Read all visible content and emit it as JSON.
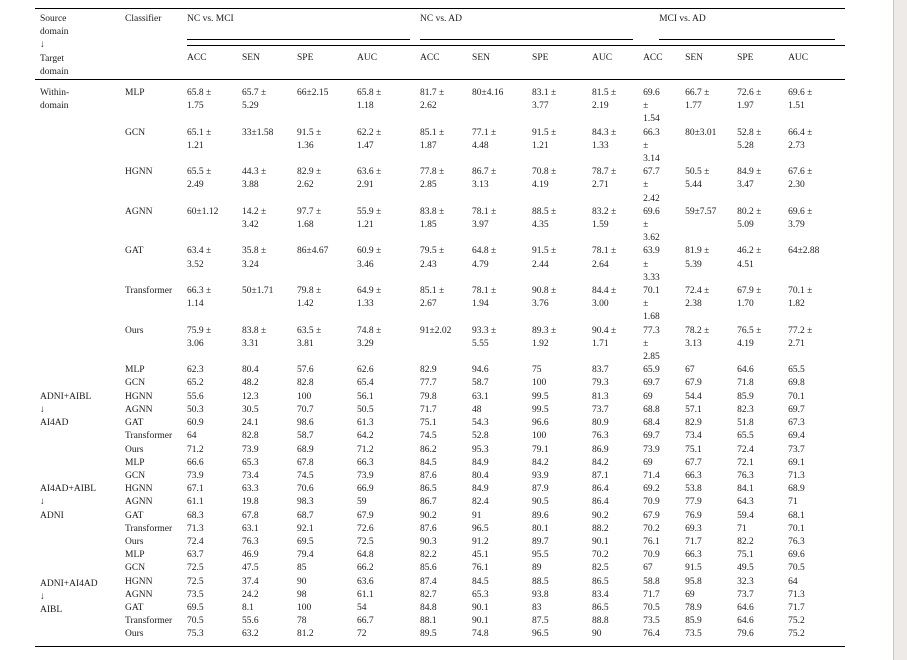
{
  "page": {
    "edge_band_color": "#edeae7"
  },
  "table": {
    "header": {
      "source_label": "Source\ndomain\n↓\nTarget\ndomain",
      "classifier_label": "Classifier",
      "groups": [
        {
          "label": "NC vs. MCI"
        },
        {
          "label": "NC vs. AD"
        },
        {
          "label": "MCI vs. AD"
        }
      ],
      "metrics": [
        "ACC",
        "SEN",
        "SPE",
        "AUC"
      ]
    },
    "blocks": [
      {
        "source": "Within-\ndomain",
        "rows": [
          {
            "classifier": "MLP",
            "values": [
              "65.8 ± 1.75",
              "65.7 ± 5.29",
              "66±2.15",
              "65.8 ± 1.18",
              "81.7 ± 2.62",
              "80±4.16",
              "83.1 ± 3.77",
              "81.5 ± 2.19",
              "69.6 ± 1.54",
              "66.7 ± 1.77",
              "72.6 ± 1.97",
              "69.6 ± 1.51"
            ]
          },
          {
            "classifier": "GCN",
            "values": [
              "65.1 ± 1.21",
              "33±1.58",
              "91.5 ± 1.36",
              "62.2 ± 1.47",
              "85.1 ± 1.87",
              "77.1 ± 4.48",
              "91.5 ± 1.21",
              "84.3 ± 1.33",
              "66.3 ± 3.14",
              "80±3.01",
              "52.8 ± 5.28",
              "66.4 ± 2.73"
            ]
          },
          {
            "classifier": "HGNN",
            "values": [
              "65.5 ± 2.49",
              "44.3 ± 3.88",
              "82.9 ± 2.62",
              "63.6 ± 2.91",
              "77.8 ± 2.85",
              "86.7 ± 3.13",
              "70.8 ± 4.19",
              "78.7 ± 2.71",
              "67.7 ± 2.42",
              "50.5 ± 5.44",
              "84.9 ± 3.47",
              "67.6 ± 2.30"
            ]
          },
          {
            "classifier": "AGNN",
            "values": [
              "60±1.12",
              "14.2 ± 3.42",
              "97.7 ± 1.68",
              "55.9 ± 1.21",
              "83.8 ± 1.85",
              "78.1 ± 3.97",
              "88.5 ± 4.35",
              "83.2 ± 1.59",
              "69.6 ± 3.62",
              "59±7.57",
              "80.2 ± 5.09",
              "69.6 ± 3.79"
            ]
          },
          {
            "classifier": "GAT",
            "values": [
              "63.4 ± 3.52",
              "35.8 ± 3.24",
              "86±4.67",
              "60.9 ± 3.46",
              "79.5 ± 2.43",
              "64.8 ± 4.79",
              "91.5 ± 2.44",
              "78.1 ± 2.64",
              "63.9 ± 3.33",
              "81.9 ± 5.39",
              "46.2 ± 4.51",
              "64±2.88"
            ]
          },
          {
            "classifier": "Transformer",
            "values": [
              "66.3 ± 1.14",
              "50±1.71",
              "79.8 ± 1.42",
              "64.9 ± 1.33",
              "85.1 ± 2.67",
              "78.1 ± 1.94",
              "90.8 ± 3.76",
              "84.4 ± 3.00",
              "70.1 ± 1.68",
              "72.4 ± 2.38",
              "67.9 ± 1.70",
              "70.1 ± 1.82"
            ]
          },
          {
            "classifier": "Ours",
            "values": [
              "75.9 ± 3.06",
              "83.8 ± 3.31",
              "63.5 ± 3.81",
              "74.8 ± 3.29",
              "91±2.02",
              "93.3 ± 5.55",
              "89.3 ± 1.92",
              "90.4 ± 1.71",
              "77.3 ± 2.85",
              "78.2 ± 3.13",
              "76.5 ± 4.19",
              "77.2 ± 2.71"
            ]
          }
        ]
      },
      {
        "source": "ADNI+AIBL\n↓\nAI4AD",
        "rows": [
          {
            "classifier": "MLP",
            "values": [
              "62.3",
              "80.4",
              "57.6",
              "62.6",
              "82.9",
              "94.6",
              "75",
              "83.7",
              "65.9",
              "67",
              "64.6",
              "65.5"
            ]
          },
          {
            "classifier": "GCN",
            "values": [
              "65.2",
              "48.2",
              "82.8",
              "65.4",
              "77.7",
              "58.7",
              "100",
              "79.3",
              "69.7",
              "67.9",
              "71.8",
              "69.8"
            ]
          },
          {
            "classifier": "HGNN",
            "values": [
              "55.6",
              "12.3",
              "100",
              "56.1",
              "79.8",
              "63.1",
              "99.5",
              "81.3",
              "69",
              "54.4",
              "85.9",
              "70.1"
            ]
          },
          {
            "classifier": "AGNN",
            "values": [
              "50.3",
              "30.5",
              "70.7",
              "50.5",
              "71.7",
              "48",
              "99.5",
              "73.7",
              "68.8",
              "57.1",
              "82.3",
              "69.7"
            ]
          },
          {
            "classifier": "GAT",
            "values": [
              "60.9",
              "24.1",
              "98.6",
              "61.3",
              "75.1",
              "54.3",
              "96.6",
              "80.9",
              "68.4",
              "82.9",
              "51.8",
              "67.3"
            ]
          },
          {
            "classifier": "Transformer",
            "values": [
              "64",
              "82.8",
              "58.7",
              "64.2",
              "74.5",
              "52.8",
              "100",
              "76.3",
              "69.7",
              "73.4",
              "65.5",
              "69.4"
            ]
          },
          {
            "classifier": "Ours",
            "values": [
              "71.2",
              "73.9",
              "68.9",
              "71.2",
              "86.2",
              "95.3",
              "79.1",
              "86.9",
              "73.9",
              "75.1",
              "72.4",
              "73.7"
            ]
          }
        ]
      },
      {
        "source": "AI4AD+AIBL\n↓\nADNI",
        "rows": [
          {
            "classifier": "MLP",
            "values": [
              "66.6",
              "65.3",
              "67.8",
              "66.3",
              "84.5",
              "84.9",
              "84.2",
              "84.2",
              "69",
              "67.7",
              "72.1",
              "69.1"
            ]
          },
          {
            "classifier": "GCN",
            "values": [
              "73.9",
              "73.4",
              "74.5",
              "73.9",
              "87.6",
              "80.4",
              "93.9",
              "87.1",
              "71.4",
              "66.3",
              "76.3",
              "71.3"
            ]
          },
          {
            "classifier": "HGNN",
            "values": [
              "67.1",
              "63.3",
              "70.6",
              "66.9",
              "86.5",
              "84.9",
              "87.9",
              "86.4",
              "69.2",
              "53.8",
              "84.1",
              "68.9"
            ]
          },
          {
            "classifier": "AGNN",
            "values": [
              "61.1",
              "19.8",
              "98.3",
              "59",
              "86.7",
              "82.4",
              "90.5",
              "86.4",
              "70.9",
              "77.9",
              "64.3",
              "71"
            ]
          },
          {
            "classifier": "GAT",
            "values": [
              "68.3",
              "67.8",
              "68.7",
              "67.9",
              "90.2",
              "91",
              "89.6",
              "90.2",
              "67.9",
              "76.9",
              "59.4",
              "68.1"
            ]
          },
          {
            "classifier": "Transformer",
            "values": [
              "71.3",
              "63.1",
              "92.1",
              "72.6",
              "87.6",
              "96.5",
              "80.1",
              "88.2",
              "70.2",
              "69.3",
              "71",
              "70.1"
            ]
          },
          {
            "classifier": "Ours",
            "values": [
              "72.4",
              "76.3",
              "69.5",
              "72.5",
              "90.3",
              "91.2",
              "89.7",
              "90.1",
              "76.1",
              "71.7",
              "82.2",
              "76.3"
            ]
          }
        ]
      },
      {
        "source": "ADNI+AI4AD\n↓\nAIBL",
        "rows": [
          {
            "classifier": "MLP",
            "values": [
              "63.7",
              "46.9",
              "79.4",
              "64.8",
              "82.2",
              "45.1",
              "95.5",
              "70.2",
              "70.9",
              "66.3",
              "75.1",
              "69.6"
            ]
          },
          {
            "classifier": "GCN",
            "values": [
              "72.5",
              "47.5",
              "85",
              "66.2",
              "85.6",
              "76.1",
              "89",
              "82.5",
              "67",
              "91.5",
              "49.5",
              "70.5"
            ]
          },
          {
            "classifier": "HGNN",
            "values": [
              "72.5",
              "37.4",
              "90",
              "63.6",
              "87.4",
              "84.5",
              "88.5",
              "86.5",
              "58.8",
              "95.8",
              "32.3",
              "64"
            ]
          },
          {
            "classifier": "AGNN",
            "values": [
              "73.5",
              "24.2",
              "98",
              "61.1",
              "82.7",
              "65.3",
              "93.8",
              "83.4",
              "71.7",
              "69",
              "73.7",
              "71.3"
            ]
          },
          {
            "classifier": "GAT",
            "values": [
              "69.5",
              "8.1",
              "100",
              "54",
              "84.8",
              "90.1",
              "83",
              "86.5",
              "70.5",
              "78.9",
              "64.6",
              "71.7"
            ]
          },
          {
            "classifier": "Transformer",
            "values": [
              "70.5",
              "55.6",
              "78",
              "66.7",
              "88.1",
              "90.1",
              "87.5",
              "88.8",
              "73.5",
              "85.9",
              "64.6",
              "75.2"
            ]
          },
          {
            "classifier": "Ours",
            "values": [
              "75.3",
              "63.2",
              "81.2",
              "72",
              "89.5",
              "74.8",
              "96.5",
              "90",
              "76.4",
              "73.5",
              "79.6",
              "75.2"
            ]
          }
        ]
      }
    ]
  }
}
